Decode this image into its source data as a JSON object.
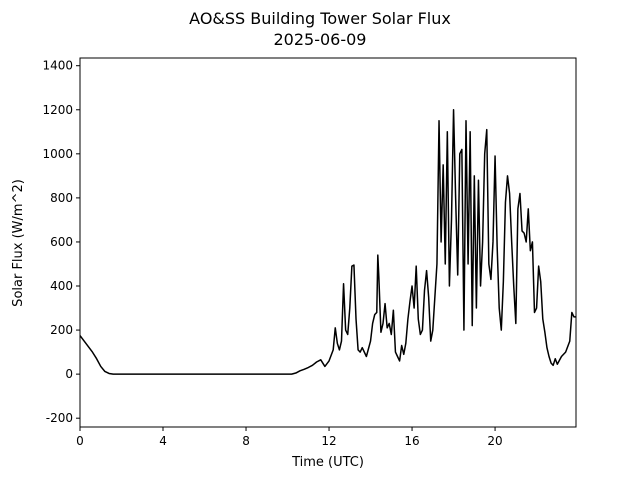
{
  "chart_data": {
    "type": "line",
    "title": "AO&SS Building Tower Solar Flux",
    "subtitle": "2025-06-09",
    "x_label": "Time (UTC)",
    "y_label": "Solar Flux (W/m^2)",
    "color": "#000000",
    "xlim": [
      0,
      23.9
    ],
    "ylim": [
      -240,
      1435
    ],
    "xticks": [
      0,
      4,
      8,
      12,
      16,
      20
    ],
    "yticks": [
      -200,
      0,
      200,
      400,
      600,
      800,
      1000,
      1200,
      1400
    ],
    "x": [
      0,
      0.2,
      0.4,
      0.6,
      0.8,
      1.0,
      1.2,
      1.4,
      1.6,
      2,
      3,
      4,
      5,
      6,
      7,
      8,
      9,
      10,
      10.2,
      10.4,
      10.6,
      10.8,
      11.0,
      11.2,
      11.4,
      11.6,
      11.8,
      12.0,
      12.2,
      12.3,
      12.4,
      12.5,
      12.6,
      12.7,
      12.8,
      12.9,
      13.0,
      13.1,
      13.2,
      13.3,
      13.4,
      13.5,
      13.6,
      13.8,
      14.0,
      14.1,
      14.2,
      14.3,
      14.35,
      14.4,
      14.5,
      14.6,
      14.7,
      14.8,
      14.9,
      15.0,
      15.1,
      15.2,
      15.3,
      15.4,
      15.5,
      15.6,
      15.7,
      15.8,
      15.9,
      16.0,
      16.1,
      16.2,
      16.3,
      16.4,
      16.5,
      16.6,
      16.7,
      16.8,
      16.9,
      17.0,
      17.2,
      17.3,
      17.4,
      17.5,
      17.6,
      17.7,
      17.8,
      17.9,
      18.0,
      18.1,
      18.2,
      18.3,
      18.4,
      18.5,
      18.6,
      18.7,
      18.8,
      18.9,
      19.0,
      19.1,
      19.2,
      19.3,
      19.4,
      19.5,
      19.6,
      19.7,
      19.8,
      19.9,
      20.0,
      20.1,
      20.2,
      20.3,
      20.4,
      20.5,
      20.6,
      20.7,
      20.8,
      20.9,
      21.0,
      21.1,
      21.2,
      21.3,
      21.4,
      21.5,
      21.6,
      21.7,
      21.8,
      21.9,
      22.0,
      22.1,
      22.2,
      22.3,
      22.4,
      22.5,
      22.6,
      22.7,
      22.8,
      22.9,
      23.0,
      23.2,
      23.4,
      23.6,
      23.7,
      23.8,
      23.9
    ],
    "values": [
      175,
      150,
      125,
      100,
      70,
      35,
      12,
      3,
      0,
      0,
      0,
      0,
      0,
      0,
      0,
      0,
      0,
      0,
      0,
      5,
      15,
      22,
      30,
      40,
      55,
      65,
      35,
      60,
      110,
      210,
      140,
      110,
      150,
      410,
      200,
      180,
      300,
      490,
      495,
      250,
      110,
      100,
      120,
      80,
      150,
      230,
      270,
      280,
      540,
      440,
      190,
      230,
      320,
      210,
      230,
      180,
      290,
      100,
      80,
      60,
      130,
      90,
      140,
      250,
      330,
      400,
      300,
      490,
      250,
      180,
      200,
      380,
      470,
      350,
      150,
      200,
      500,
      1150,
      600,
      950,
      500,
      1100,
      400,
      700,
      1200,
      800,
      450,
      1000,
      1020,
      200,
      1150,
      500,
      1100,
      220,
      900,
      300,
      880,
      400,
      600,
      1000,
      1110,
      500,
      430,
      600,
      990,
      580,
      300,
      200,
      420,
      780,
      900,
      820,
      600,
      400,
      230,
      750,
      820,
      650,
      640,
      600,
      750,
      560,
      600,
      280,
      300,
      490,
      420,
      250,
      190,
      120,
      80,
      50,
      40,
      70,
      45,
      80,
      100,
      150,
      280,
      260,
      260
    ]
  }
}
